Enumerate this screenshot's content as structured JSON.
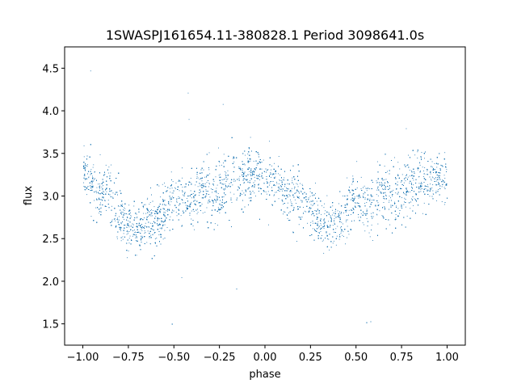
{
  "chart_data": {
    "type": "scatter",
    "title": "1SWASPJ161654.11-380828.1 Period 3098641.0s",
    "xlabel": "phase",
    "ylabel": "flux",
    "xlim": [
      -1.1,
      1.1
    ],
    "ylim": [
      1.25,
      4.75
    ],
    "xticks": [
      -1.0,
      -0.75,
      -0.5,
      -0.25,
      0.0,
      0.25,
      0.5,
      0.75,
      1.0
    ],
    "xtick_labels": [
      "−1.00",
      "−0.75",
      "−0.50",
      "−0.25",
      "0.00",
      "0.25",
      "0.50",
      "0.75",
      "1.00"
    ],
    "yticks": [
      1.5,
      2.0,
      2.5,
      3.0,
      3.5,
      4.0,
      4.5
    ],
    "ytick_labels": [
      "1.5",
      "2.0",
      "2.5",
      "3.0",
      "3.5",
      "4.0",
      "4.5"
    ],
    "grid": false,
    "legend": "none",
    "point_color": "#1f77b4",
    "x_range": [
      -1.0,
      1.0
    ],
    "y_range": [
      1.4,
      4.7
    ],
    "series": [
      {
        "x": [
          -1.0,
          -0.98,
          -0.95,
          -0.9,
          -0.85,
          -0.8,
          -0.78,
          -0.75,
          -0.7,
          -0.68,
          -0.65,
          -0.6,
          -0.58,
          -0.55,
          -0.5,
          -0.45,
          -0.4,
          -0.35,
          -0.3,
          -0.25,
          -0.2,
          -0.15,
          -0.1,
          -0.05,
          0.0,
          0.05,
          0.1,
          0.15,
          0.2,
          0.25,
          0.3,
          0.35,
          0.4,
          0.43,
          0.45,
          0.5,
          0.55,
          0.6,
          0.65,
          0.7,
          0.75,
          0.8,
          0.85,
          0.88,
          0.9,
          0.95,
          1.0
        ],
        "y": [
          3.2,
          3.3,
          3.1,
          3.0,
          3.05,
          2.8,
          2.7,
          2.65,
          2.6,
          2.7,
          2.75,
          2.7,
          2.75,
          2.8,
          3.0,
          2.9,
          2.95,
          3.1,
          3.0,
          3.05,
          3.15,
          3.2,
          3.25,
          3.25,
          3.2,
          3.2,
          3.1,
          3.0,
          3.0,
          2.85,
          2.7,
          2.65,
          2.7,
          2.75,
          2.85,
          3.0,
          2.95,
          2.95,
          3.05,
          3.0,
          3.05,
          3.15,
          3.2,
          3.25,
          3.2,
          3.2,
          3.2
        ],
        "spread": [
          0.35,
          0.4,
          0.45,
          0.4,
          0.4,
          0.45,
          0.45,
          0.4,
          0.35,
          0.35,
          0.4,
          0.45,
          0.4,
          0.4,
          0.4,
          0.4,
          0.45,
          0.4,
          0.45,
          0.45,
          0.5,
          0.45,
          0.45,
          0.35,
          0.35,
          0.35,
          0.4,
          0.45,
          0.4,
          0.4,
          0.35,
          0.35,
          0.4,
          0.4,
          0.45,
          0.45,
          0.45,
          0.45,
          0.5,
          0.5,
          0.45,
          0.45,
          0.45,
          0.45,
          0.35,
          0.35,
          0.35
        ]
      }
    ]
  }
}
